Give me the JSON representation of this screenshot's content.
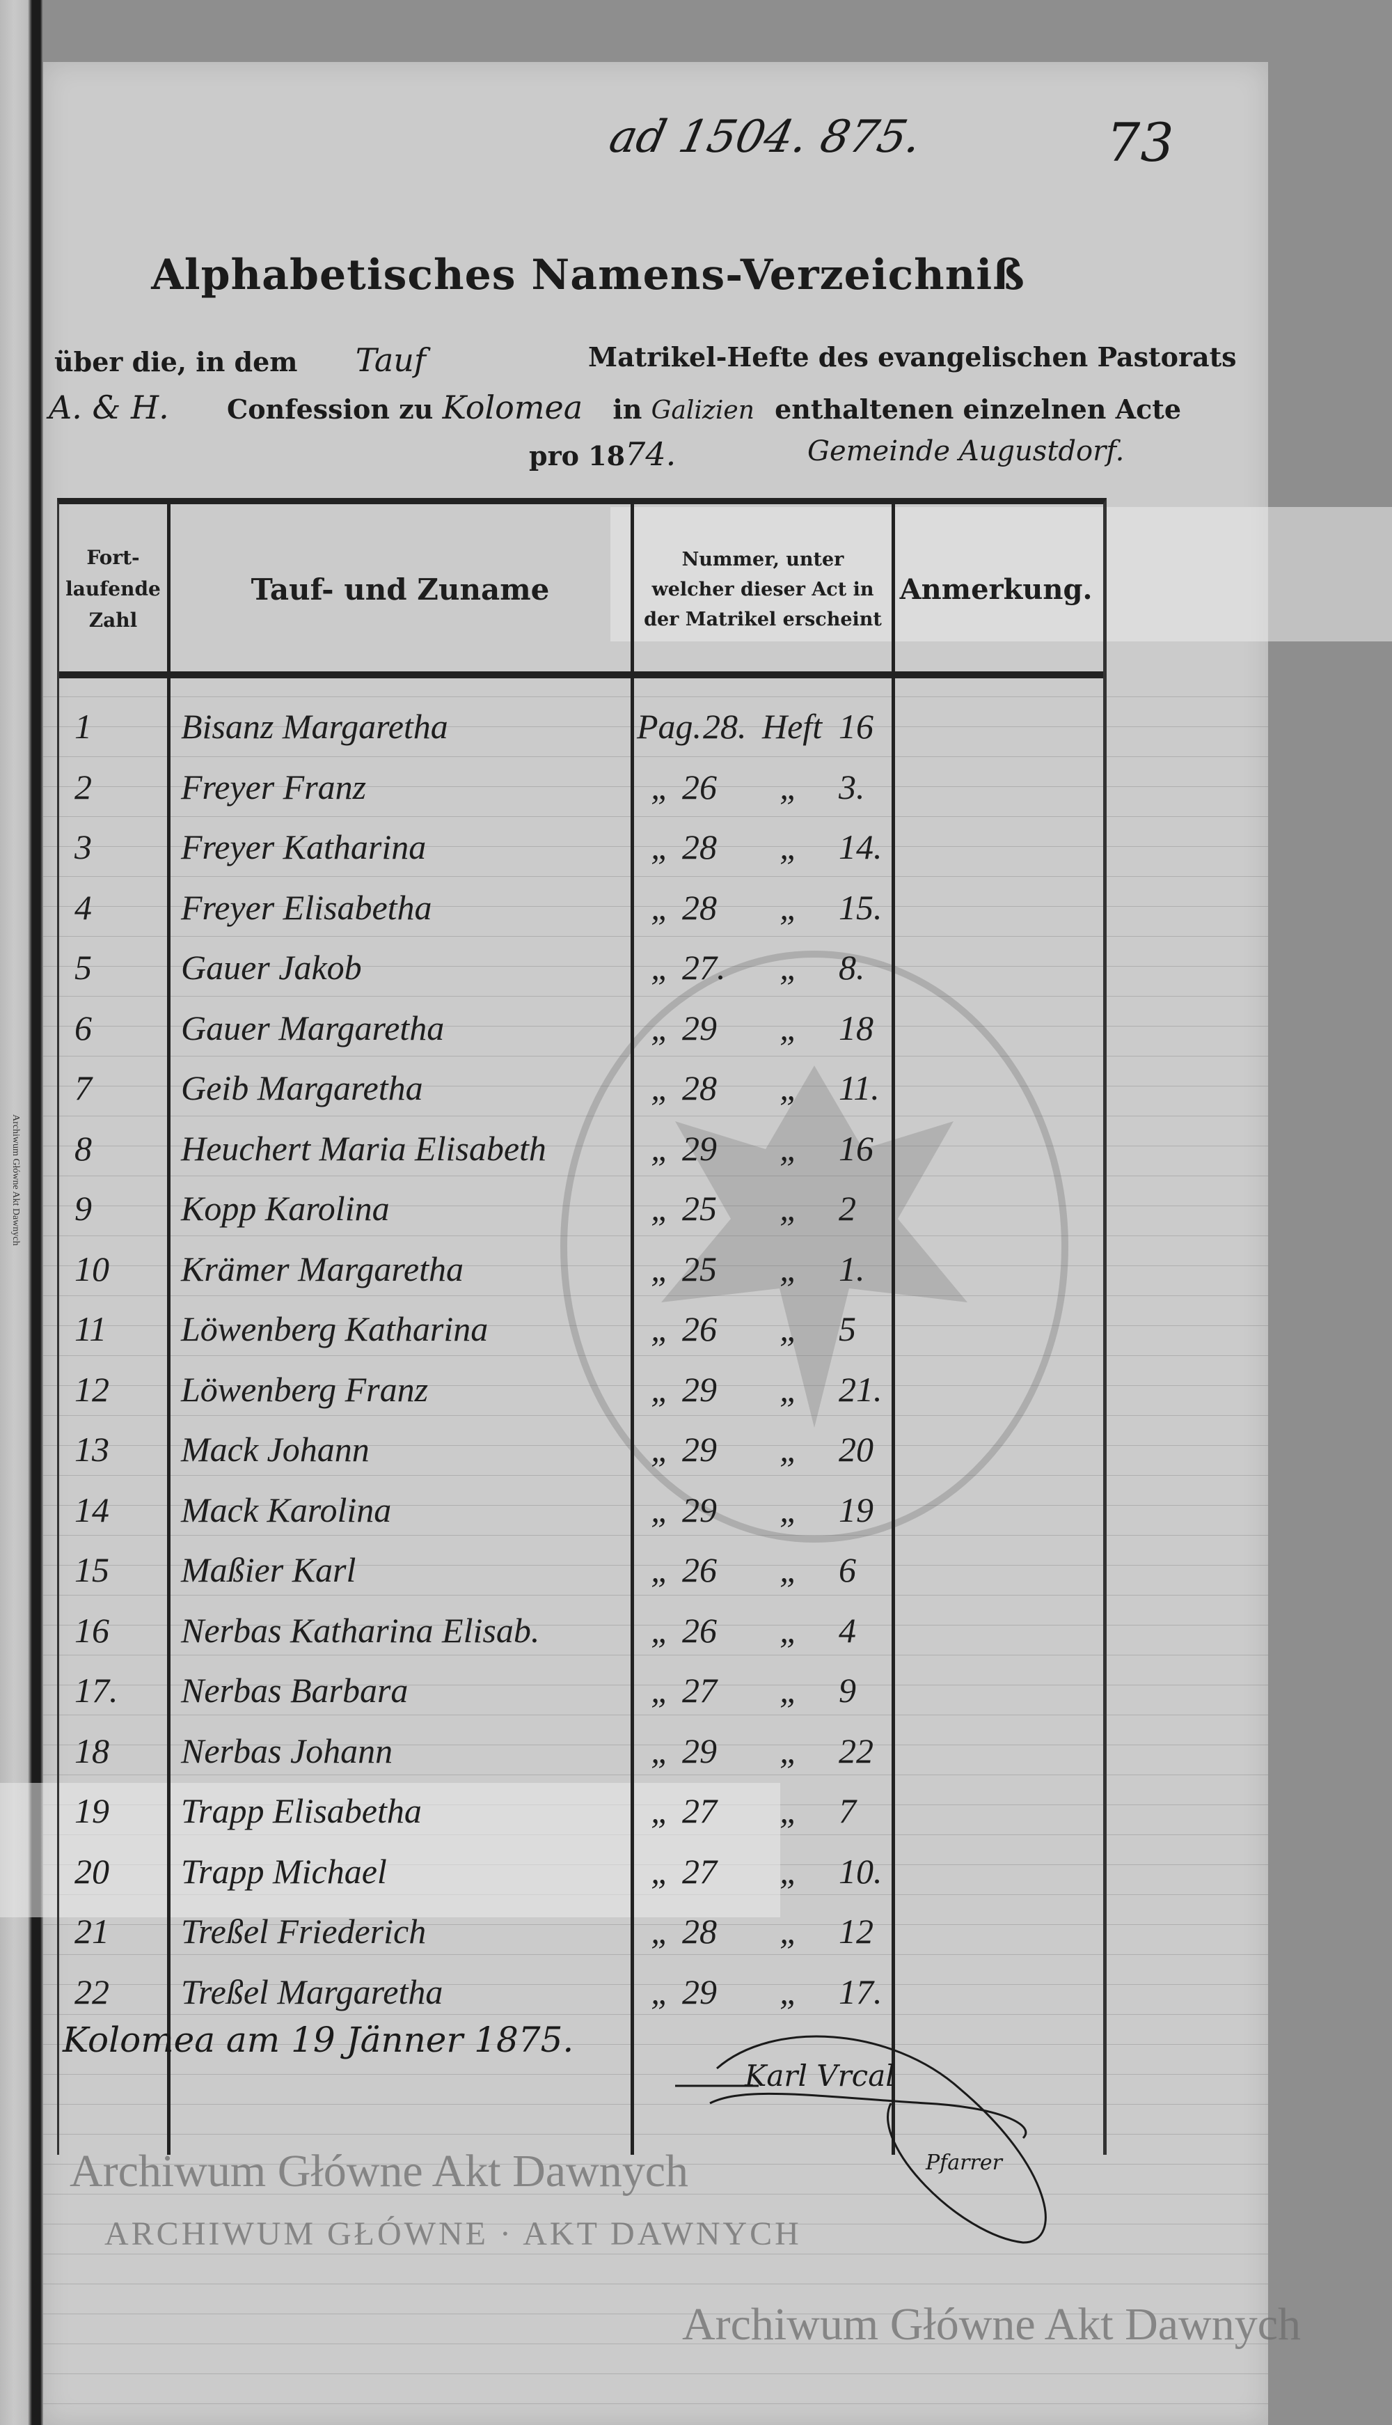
{
  "annotations": {
    "reference": "ad 1504. 875.",
    "folio": "73"
  },
  "title": "Alphabetisches Namens-Verzeichniß",
  "intro": {
    "line1_pre": "über die, in dem",
    "line1_fill": "Tauf",
    "line1_post": "Matrikel-Hefte des evangelischen Pastorats",
    "line2_fill_a": "A. & H.",
    "line2_pre": "Confession zu",
    "line2_fill_b": "Kolomea",
    "line2_mid": "in",
    "line2_fill_c": "Galizien",
    "line2_post": "enthaltenen einzelnen Acte",
    "line3_pre": "pro 18",
    "line3_fill": "74.",
    "line3_note": "Gemeinde Augustdorf."
  },
  "table": {
    "headers": {
      "number": "Fort- laufende Zahl",
      "name": "Tauf- und Zuname",
      "reference": "Nummer, unter welcher dieser Act in der Matrikel erscheint",
      "remark": "Anmerkung."
    },
    "first_row_prefix": {
      "page": "Pag.",
      "entry": "Heft"
    },
    "ditto": "„",
    "rows": [
      {
        "n": "1",
        "name": "Bisanz Margaretha",
        "page": "28.",
        "entry": "16"
      },
      {
        "n": "2",
        "name": "Freyer Franz",
        "page": "26",
        "entry": "3."
      },
      {
        "n": "3",
        "name": "Freyer Katharina",
        "page": "28",
        "entry": "14."
      },
      {
        "n": "4",
        "name": "Freyer Elisabetha",
        "page": "28",
        "entry": "15."
      },
      {
        "n": "5",
        "name": "Gauer Jakob",
        "page": "27.",
        "entry": "8."
      },
      {
        "n": "6",
        "name": "Gauer Margaretha",
        "page": "29",
        "entry": "18"
      },
      {
        "n": "7",
        "name": "Geib Margaretha",
        "page": "28",
        "entry": "11."
      },
      {
        "n": "8",
        "name": "Heuchert Maria Elisabeth",
        "page": "29",
        "entry": "16"
      },
      {
        "n": "9",
        "name": "Kopp Karolina",
        "page": "25",
        "entry": "2"
      },
      {
        "n": "10",
        "name": "Krämer Margaretha",
        "page": "25",
        "entry": "1."
      },
      {
        "n": "11",
        "name": "Löwenberg Katharina",
        "page": "26",
        "entry": "5"
      },
      {
        "n": "12",
        "name": "Löwenberg Franz",
        "page": "29",
        "entry": "21."
      },
      {
        "n": "13",
        "name": "Mack Johann",
        "page": "29",
        "entry": "20"
      },
      {
        "n": "14",
        "name": "Mack Karolina",
        "page": "29",
        "entry": "19"
      },
      {
        "n": "15",
        "name": "Maßier Karl",
        "page": "26",
        "entry": "6"
      },
      {
        "n": "16",
        "name": "Nerbas Katharina Elisab.",
        "page": "26",
        "entry": "4"
      },
      {
        "n": "17.",
        "name": "Nerbas Barbara",
        "page": "27",
        "entry": "9"
      },
      {
        "n": "18",
        "name": "Nerbas Johann",
        "page": "29",
        "entry": "22"
      },
      {
        "n": "19",
        "name": "Trapp Elisabetha",
        "page": "27",
        "entry": "7"
      },
      {
        "n": "20",
        "name": "Trapp Michael",
        "page": "27",
        "entry": "10."
      },
      {
        "n": "21",
        "name": "Treßel Friederich",
        "page": "28",
        "entry": "12"
      },
      {
        "n": "22",
        "name": "Treßel Margaretha",
        "page": "29",
        "entry": "17."
      }
    ]
  },
  "closing": {
    "place_date": "Kolomea am 19 Jänner 1875."
  },
  "signature": "Karl Vrcal, Pfarrer",
  "watermark": {
    "text": "Archiwum Główne Akt Dawnych",
    "seal_text": "ARCHIWUM GŁÓWNE · AKT DAWNYCH"
  },
  "colors": {
    "paper": "#cbcbcb",
    "ink": "#1e1e1e"
  }
}
